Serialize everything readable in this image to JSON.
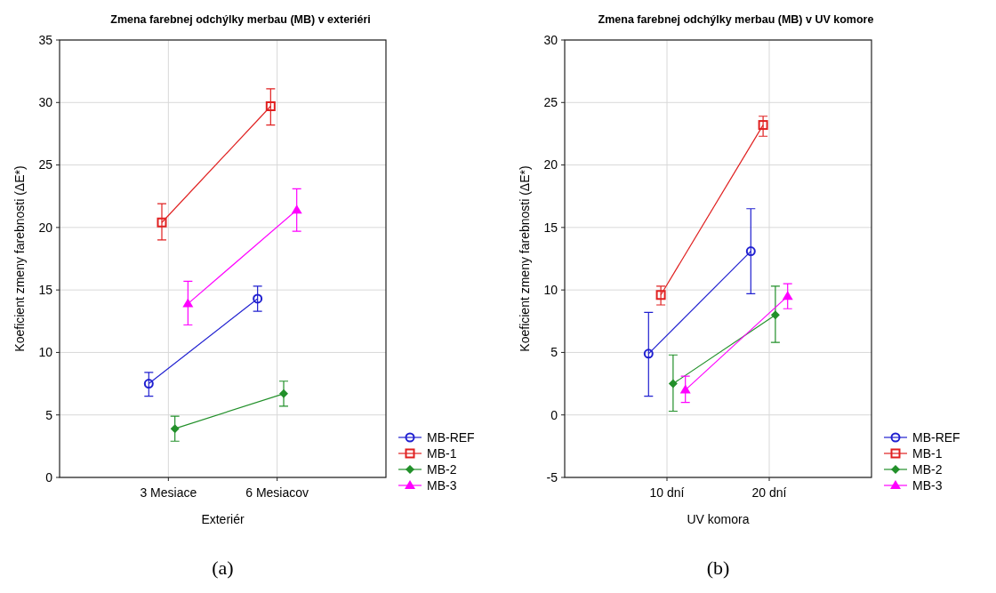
{
  "chart_data": [
    {
      "type": "line",
      "title": "Zmena farebnej odchýlky merbau (MB) v exteriéri",
      "xlabel": "Exteriér",
      "ylabel": "Koeficient zmeny farebnosti  (ΔE*)",
      "categories": [
        "3 Mesiace",
        "6 Mesiacov"
      ],
      "ylim": [
        0,
        35
      ],
      "yticks": [
        0,
        5,
        10,
        15,
        20,
        25,
        30,
        35
      ],
      "grid": true,
      "legend": "bottom right",
      "annotations": [
        "(a)"
      ],
      "series": [
        {
          "name": "MB-REF",
          "color": "#2020d0",
          "marker": "circle",
          "values": [
            7.5,
            14.3
          ],
          "errors": [
            [
              6.5,
              8.4
            ],
            [
              13.3,
              15.3
            ]
          ]
        },
        {
          "name": "MB-1",
          "color": "#e02020",
          "marker": "square",
          "values": [
            20.4,
            29.7
          ],
          "errors": [
            [
              19,
              21.9
            ],
            [
              28.2,
              31.1
            ]
          ]
        },
        {
          "name": "MB-2",
          "color": "#22902a",
          "marker": "diamond",
          "values": [
            3.9,
            6.7
          ],
          "errors": [
            [
              2.9,
              4.9
            ],
            [
              5.7,
              7.7
            ]
          ]
        },
        {
          "name": "MB-3",
          "color": "#ff00ff",
          "marker": "triangle",
          "values": [
            13.9,
            21.4
          ],
          "errors": [
            [
              12.2,
              15.7
            ],
            [
              19.7,
              23.1
            ]
          ]
        }
      ]
    },
    {
      "type": "line",
      "title": "Zmena farebnej odchýlky merbau (MB) v UV komore",
      "xlabel": "UV komora",
      "ylabel": "Koeficient zmeny farebnosti  (ΔE*)",
      "categories": [
        "10 dní",
        "20 dní"
      ],
      "ylim": [
        -5,
        30
      ],
      "yticks": [
        -5,
        0,
        5,
        10,
        15,
        20,
        25,
        30
      ],
      "grid": true,
      "legend": "bottom right",
      "annotations": [
        "(b)"
      ],
      "series": [
        {
          "name": "MB-REF",
          "color": "#2020d0",
          "marker": "circle",
          "values": [
            4.9,
            13.1
          ],
          "errors": [
            [
              1.5,
              8.2
            ],
            [
              9.7,
              16.5
            ]
          ]
        },
        {
          "name": "MB-1",
          "color": "#e02020",
          "marker": "square",
          "values": [
            9.6,
            23.2
          ],
          "errors": [
            [
              8.8,
              10.3
            ],
            [
              22.3,
              23.9
            ]
          ]
        },
        {
          "name": "MB-2",
          "color": "#22902a",
          "marker": "diamond",
          "values": [
            2.5,
            8.0
          ],
          "errors": [
            [
              0.3,
              4.8
            ],
            [
              5.8,
              10.3
            ]
          ]
        },
        {
          "name": "MB-3",
          "color": "#ff00ff",
          "marker": "triangle",
          "values": [
            2.0,
            9.5
          ],
          "errors": [
            [
              1.0,
              3.1
            ],
            [
              8.5,
              10.5
            ]
          ]
        }
      ]
    }
  ]
}
